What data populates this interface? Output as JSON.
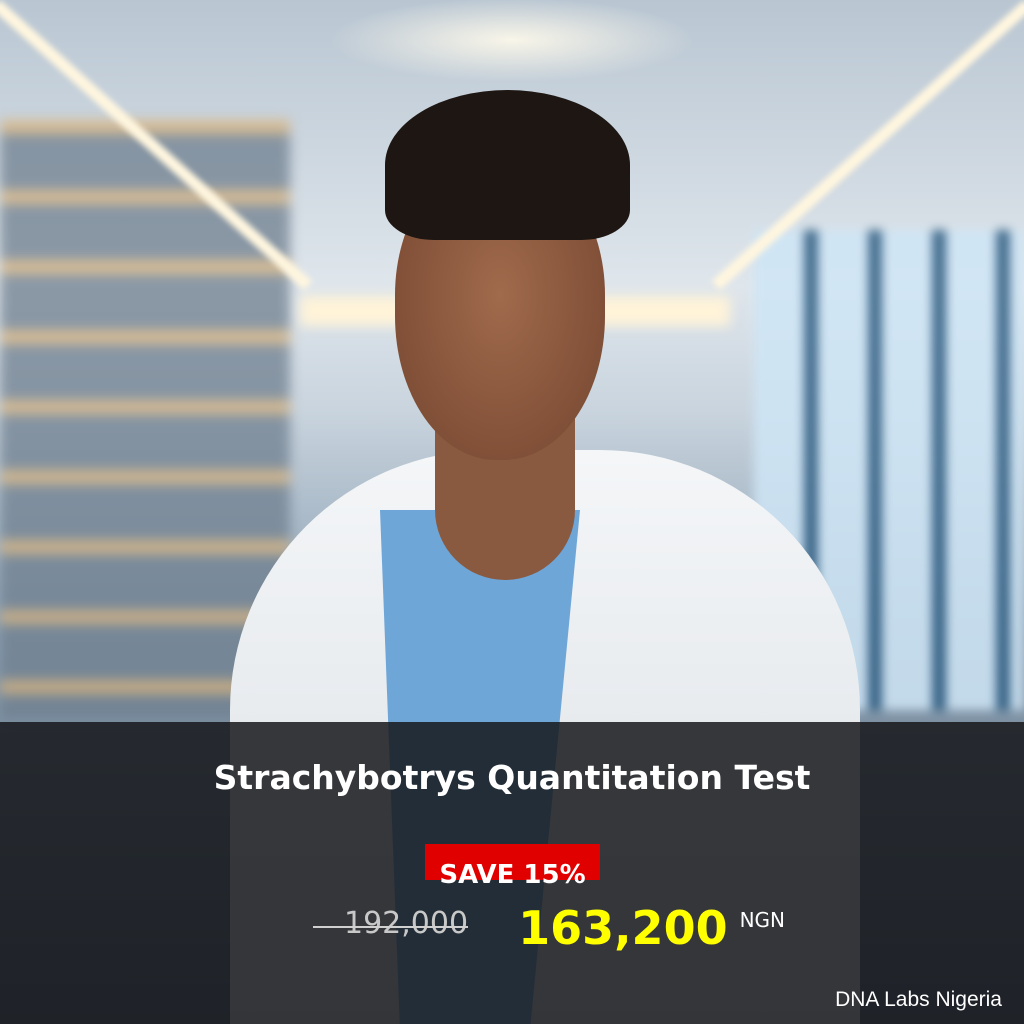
{
  "product": {
    "title": "Strachybotrys Quantitation Test",
    "discount_badge": "SAVE 15%",
    "original_price": "192,000",
    "sale_price": "163,200",
    "currency": "NGN"
  },
  "brand": "DNA Labs Nigeria",
  "colors": {
    "badge": "#e00000",
    "sale_price": "#ffff00",
    "overlay": "#16181b"
  }
}
